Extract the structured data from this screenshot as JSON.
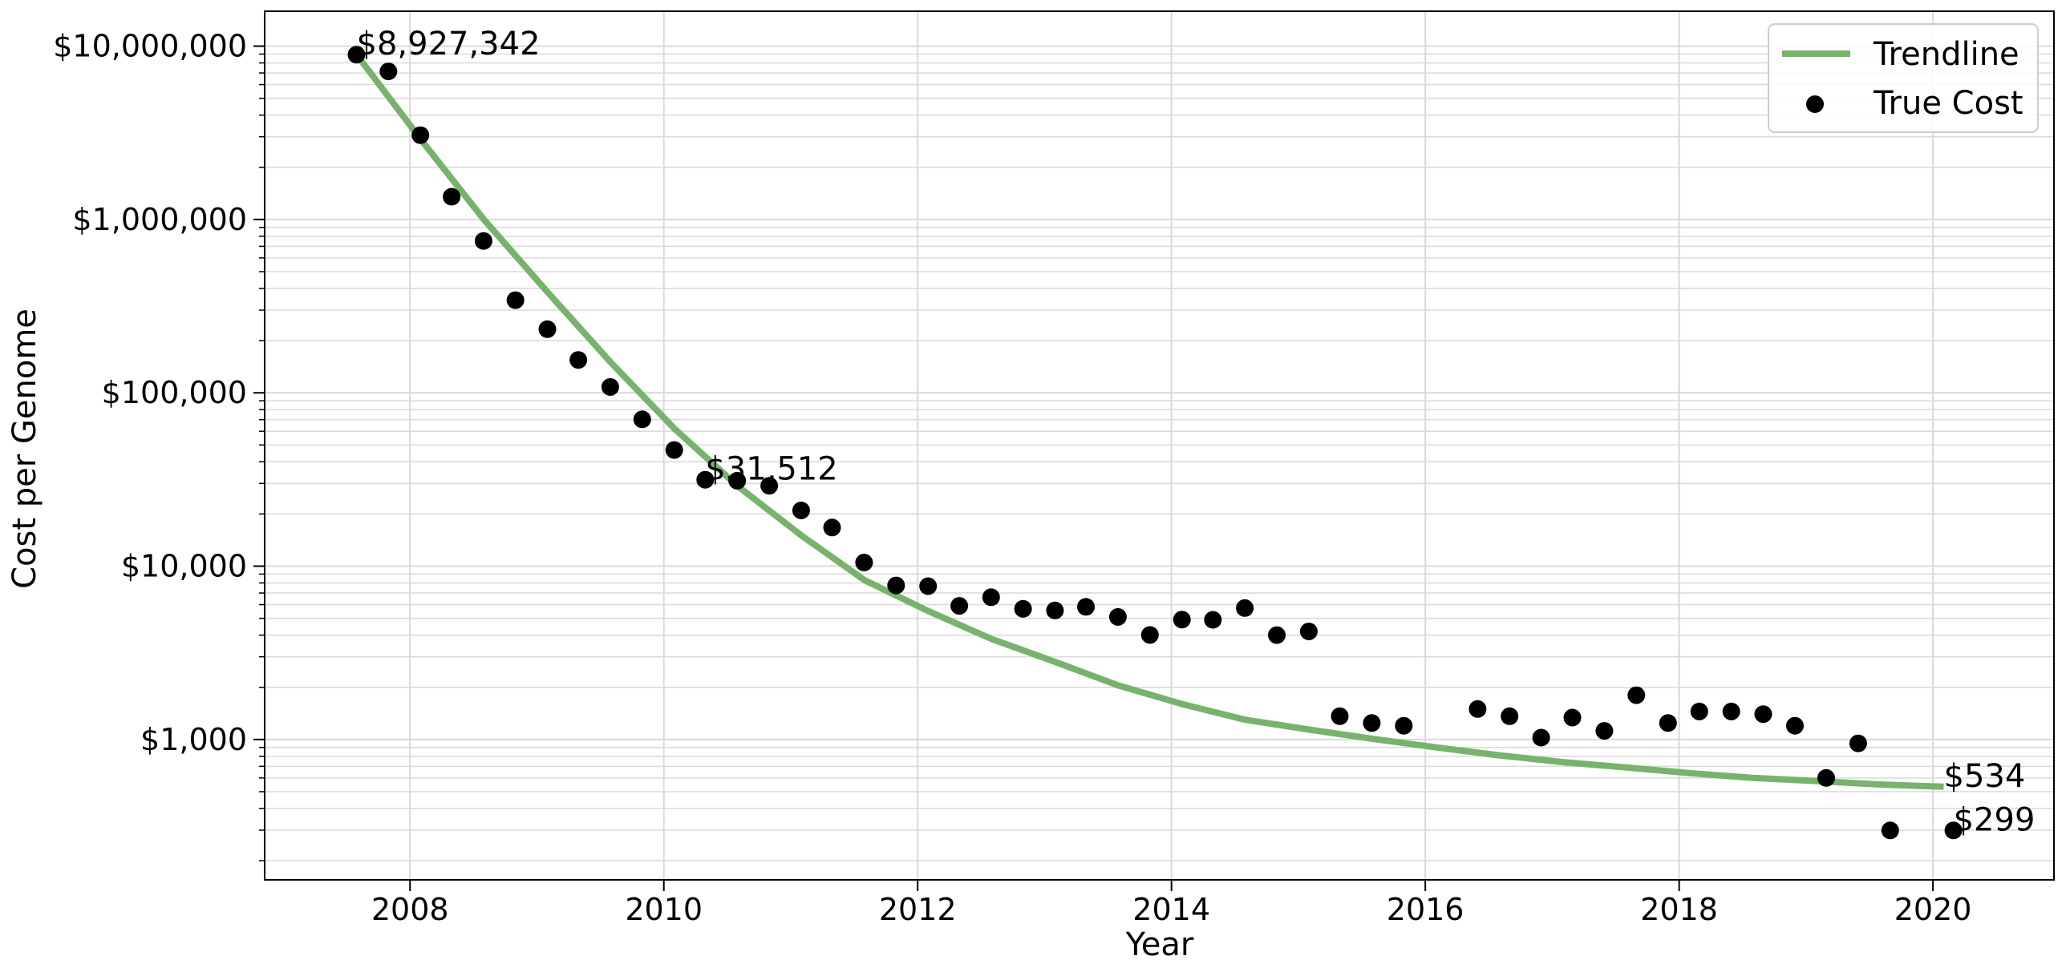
{
  "chart_data": {
    "type": "scatter",
    "title": "",
    "xlabel": "Year",
    "ylabel": "Cost per Genome",
    "xscale": "linear",
    "yscale": "log",
    "xlim": [
      "2006-11-09",
      "2020-12-15"
    ],
    "ylim": [
      155,
      15900000
    ],
    "grid": true,
    "legend_position": "top-right",
    "x_ticks": [
      "2008-01-01",
      "2010-01-01",
      "2012-01-01",
      "2014-01-01",
      "2016-01-01",
      "2018-01-01",
      "2020-01-01"
    ],
    "x_tick_labels": [
      "2008",
      "2010",
      "2012",
      "2014",
      "2016",
      "2018",
      "2020"
    ],
    "y_ticks": [
      1000,
      10000,
      100000,
      1000000,
      10000000
    ],
    "y_tick_labels": [
      "$1,000",
      "$10,000",
      "$100,000",
      "$1,000,000",
      "$10,000,000"
    ],
    "series": [
      {
        "name": "Trendline",
        "kind": "line",
        "color": "#77b36c",
        "x": [
          "2007-08-01",
          "2008-02-01",
          "2008-08-01",
          "2009-02-01",
          "2009-08-01",
          "2010-02-01",
          "2010-08-01",
          "2011-02-01",
          "2011-08-01",
          "2012-02-01",
          "2012-08-01",
          "2013-02-01",
          "2013-08-01",
          "2014-02-01",
          "2014-08-01",
          "2015-02-01",
          "2015-08-01",
          "2016-02-01",
          "2016-08-01",
          "2017-02-01",
          "2017-08-01",
          "2018-02-01",
          "2018-08-01",
          "2019-02-01",
          "2019-08-01",
          "2020-02-01"
        ],
        "y": [
          8900000,
          2900000,
          1000000,
          380000,
          150000,
          62000,
          29000,
          15000,
          8300,
          5500,
          3800,
          2800,
          2050,
          1600,
          1300,
          1140,
          1010,
          900,
          810,
          740,
          690,
          640,
          600,
          575,
          550,
          534
        ]
      },
      {
        "name": "True Cost",
        "kind": "scatter",
        "color": "#000000",
        "x": [
          "2007-07-31",
          "2007-10-31",
          "2008-01-31",
          "2008-04-30",
          "2008-07-31",
          "2008-10-31",
          "2009-01-31",
          "2009-04-30",
          "2009-07-31",
          "2009-10-31",
          "2010-01-31",
          "2010-04-30",
          "2010-07-31",
          "2010-10-31",
          "2011-01-31",
          "2011-04-30",
          "2011-07-31",
          "2011-10-31",
          "2012-01-31",
          "2012-04-30",
          "2012-07-31",
          "2012-10-31",
          "2013-01-31",
          "2013-04-30",
          "2013-07-31",
          "2013-10-31",
          "2014-01-31",
          "2014-04-30",
          "2014-07-31",
          "2014-10-31",
          "2015-01-31",
          "2015-04-30",
          "2015-07-31",
          "2015-10-31",
          "2016-05-31",
          "2016-08-31",
          "2016-11-30",
          "2017-02-28",
          "2017-05-31",
          "2017-08-31",
          "2017-11-30",
          "2018-02-28",
          "2018-05-31",
          "2018-08-31",
          "2018-11-30",
          "2019-02-28",
          "2019-05-31",
          "2019-08-31",
          "2020-02-29"
        ],
        "y": [
          8927342,
          7147571,
          3063820,
          1352982,
          752080,
          342502,
          232735,
          154714,
          108065,
          70333,
          46774,
          31512,
          31125,
          29092,
          20963,
          16712,
          10497,
          7743,
          7666,
          5901,
          6618,
          5671,
          5550,
          5826,
          5096,
          4008,
          4920,
          4905,
          5731,
          4000,
          4200,
          1363,
          1245,
          1200,
          1500,
          1363,
          1025,
          1338,
          1121,
          1800,
          1245,
          1450,
          1450,
          1400,
          1200,
          600,
          950,
          299,
          299
        ]
      }
    ],
    "annotations": [
      {
        "text": "$8,927,342",
        "x": "2007-07-31",
        "y": 8927342
      },
      {
        "text": "$31,512",
        "x": "2010-04-30",
        "y": 31512
      },
      {
        "text": "$534",
        "x": "2020-02-01",
        "y": 534
      },
      {
        "text": "$299",
        "x": "2020-02-29",
        "y": 299
      }
    ]
  }
}
